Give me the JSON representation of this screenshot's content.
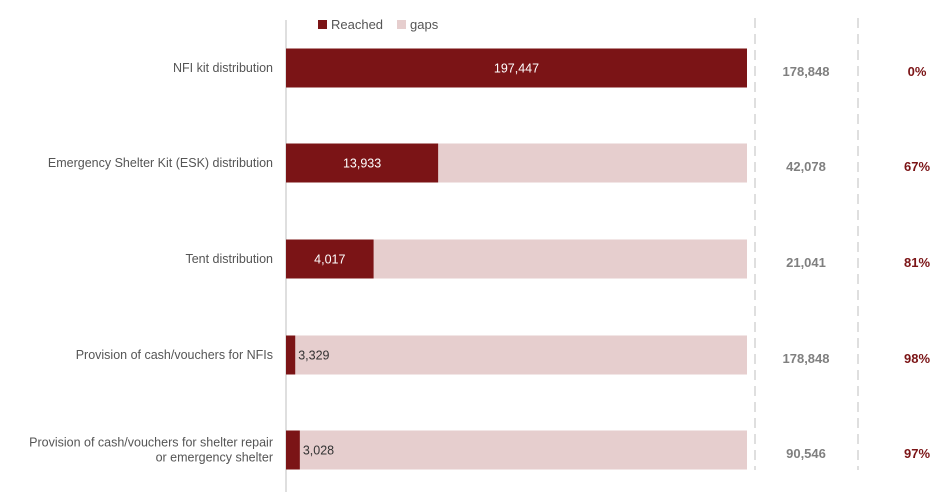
{
  "chart_data": {
    "type": "bar",
    "stacked": true,
    "orientation": "horizontal",
    "legend": {
      "position": "top",
      "items": [
        "Reached",
        "gaps"
      ]
    },
    "categories": [
      [
        "NFI kit distribution"
      ],
      [
        "Emergency Shelter Kit (ESK) distribution"
      ],
      [
        "Tent distribution"
      ],
      [
        "Provision of cash/vouchers for NFIs"
      ],
      [
        "Provision of cash/vouchers for shelter repair",
        "or emergency shelter"
      ]
    ],
    "reached_fraction": [
      1.0,
      0.33,
      0.19,
      0.02,
      0.03
    ],
    "series": [
      {
        "name": "Reached",
        "values": [
          197447,
          13933,
          4017,
          3329,
          3028
        ]
      },
      {
        "name": "gaps",
        "values": [
          0,
          28145,
          17024,
          175519,
          87518
        ]
      }
    ],
    "value_labels": [
      "197,447",
      "13,933",
      "4,017",
      "3,329",
      "3,028"
    ],
    "targets": [
      "178,848",
      "42,078",
      "21,041",
      "178,848",
      "90,546"
    ],
    "gap_percent": [
      "0%",
      "67%",
      "81%",
      "98%",
      "97%"
    ],
    "colors": {
      "reached": "#7b1416",
      "gaps": "#e6cece",
      "target_text": "#7f7f7f",
      "percent_text": "#7b1416",
      "label_text": "#555555",
      "divider": "#bfbfbf"
    }
  }
}
